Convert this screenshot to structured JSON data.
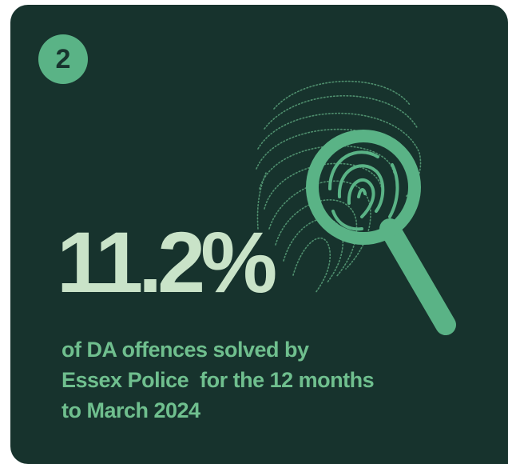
{
  "badge": {
    "number": "2"
  },
  "stat": {
    "value": "11.2%"
  },
  "caption": {
    "lines": [
      "of DA offences solved by",
      "Essex Police  for the 12 months",
      "to March 2024"
    ]
  },
  "icons": {
    "fingerprint": "fingerprint-icon",
    "magnifier": "magnifying-glass-icon"
  },
  "colors": {
    "background": "#17332d",
    "accent": "#5ab386",
    "stat_text": "#c9e3c8",
    "caption_text": "#6fbf8e"
  }
}
